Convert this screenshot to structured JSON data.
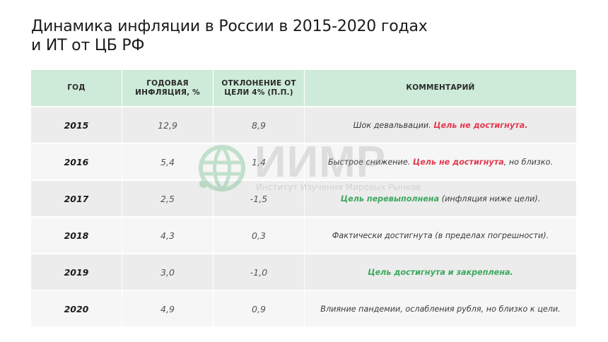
{
  "title": {
    "line1": "Динамика инфляции в России в 2015-2020 годах",
    "line2": "и ИТ от ЦБ РФ"
  },
  "table": {
    "headers": {
      "year": "Год",
      "inflation": "Годовая инфляция, %",
      "deviation": "Отклонение от цели 4% (п.п.)",
      "comment": "Комментарий"
    },
    "rows": [
      {
        "year": "2015",
        "inflation": "12,9",
        "deviation": "8,9",
        "comment": {
          "pre": "Шок девальвации. ",
          "hl": "Цель не достигнута.",
          "post": ""
        }
      },
      {
        "year": "2016",
        "inflation": "5,4",
        "deviation": "1,4",
        "comment": {
          "pre": "Быстрое снижение. ",
          "hl": "Цель не достигнута",
          "post": ", но близко."
        }
      },
      {
        "year": "2017",
        "inflation": "2,5",
        "deviation": "-1,5",
        "comment": {
          "pre": "",
          "hl": "Цель перевыполнена",
          "post": " (инфляция ниже цели)."
        }
      },
      {
        "year": "2018",
        "inflation": "4,3",
        "deviation": "0,3",
        "comment": {
          "pre": "Фактически достигнута (в пределах погрешности).",
          "hl": "",
          "post": ""
        }
      },
      {
        "year": "2019",
        "inflation": "3,0",
        "deviation": "-1,0",
        "comment": {
          "pre": "",
          "hl": "Цель достигнута и закреплена.",
          "post": ""
        }
      },
      {
        "year": "2020",
        "inflation": "4,9",
        "deviation": "0,9",
        "comment": {
          "pre": "Влияние пандемии, ослабления рубля, но близко к цели.",
          "hl": "",
          "post": ""
        }
      }
    ]
  },
  "watermark": {
    "logo_text": "ИИМР",
    "subtitle": "Институт Изучения Мировых Рынков"
  },
  "colors": {
    "header_bg": "#cdebd8",
    "negative": "#e23a4e",
    "positive": "#3ca85e"
  }
}
